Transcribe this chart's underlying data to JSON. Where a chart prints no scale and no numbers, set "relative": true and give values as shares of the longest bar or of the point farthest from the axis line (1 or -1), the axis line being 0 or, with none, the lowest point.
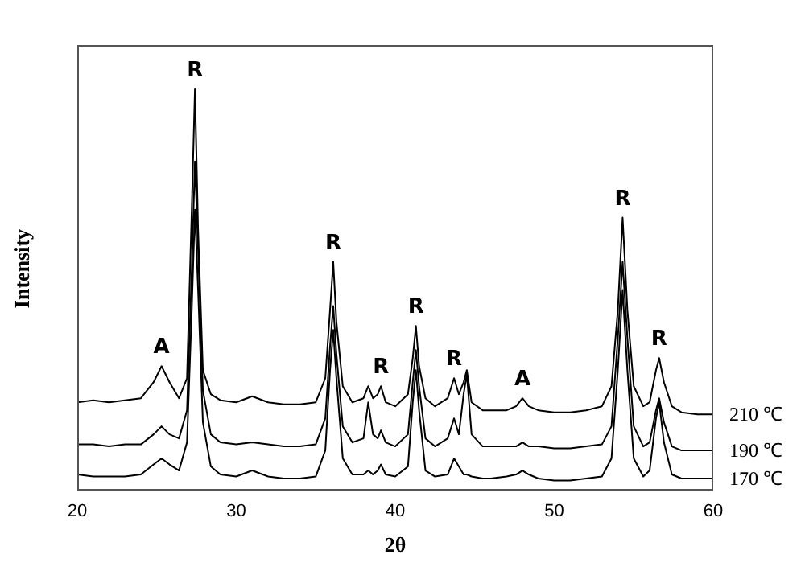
{
  "chart_data": {
    "type": "line",
    "xlabel": "2θ",
    "ylabel": "Intensity",
    "relative": true,
    "xlim": [
      20,
      60
    ],
    "xticks": [
      20,
      30,
      40,
      50,
      60
    ],
    "tick_labels": "x",
    "line_style": "solid",
    "x": [
      20,
      21,
      22,
      23,
      24,
      24.8,
      25.3,
      25.8,
      26.4,
      26.9,
      27.2,
      27.4,
      27.6,
      27.9,
      28.4,
      29,
      30,
      31,
      32,
      33,
      34,
      35,
      35.6,
      35.9,
      36.1,
      36.3,
      36.7,
      37.3,
      38,
      38.3,
      38.6,
      38.9,
      39.1,
      39.4,
      40,
      40.8,
      41.1,
      41.3,
      41.5,
      41.9,
      42.5,
      43.3,
      43.7,
      44.0,
      44.3,
      44.5,
      44.8,
      45.5,
      46,
      47,
      47.6,
      48,
      48.4,
      49,
      50,
      51,
      52,
      53,
      53.6,
      54.0,
      54.3,
      54.6,
      55.0,
      55.6,
      56.0,
      56.4,
      56.6,
      56.9,
      57.4,
      58,
      59,
      60
    ],
    "series": [
      {
        "name": "210 ℃",
        "color": "#000000",
        "values": [
          0.22,
          0.225,
          0.22,
          0.225,
          0.23,
          0.27,
          0.31,
          0.27,
          0.23,
          0.28,
          0.7,
          1.0,
          0.65,
          0.3,
          0.24,
          0.225,
          0.22,
          0.235,
          0.22,
          0.215,
          0.215,
          0.22,
          0.28,
          0.45,
          0.57,
          0.42,
          0.26,
          0.22,
          0.23,
          0.26,
          0.23,
          0.24,
          0.26,
          0.22,
          0.21,
          0.24,
          0.33,
          0.41,
          0.31,
          0.23,
          0.21,
          0.23,
          0.28,
          0.24,
          0.27,
          0.3,
          0.22,
          0.2,
          0.2,
          0.2,
          0.21,
          0.23,
          0.21,
          0.2,
          0.195,
          0.195,
          0.2,
          0.21,
          0.26,
          0.45,
          0.68,
          0.45,
          0.26,
          0.21,
          0.22,
          0.3,
          0.33,
          0.27,
          0.21,
          0.195,
          0.19,
          0.19
        ]
      },
      {
        "name": "190 ℃",
        "color": "#000000",
        "values": [
          0.115,
          0.115,
          0.11,
          0.115,
          0.115,
          0.14,
          0.16,
          0.14,
          0.13,
          0.2,
          0.55,
          0.82,
          0.6,
          0.25,
          0.14,
          0.12,
          0.115,
          0.12,
          0.115,
          0.11,
          0.11,
          0.115,
          0.18,
          0.36,
          0.46,
          0.34,
          0.16,
          0.12,
          0.13,
          0.22,
          0.14,
          0.13,
          0.15,
          0.12,
          0.11,
          0.14,
          0.27,
          0.35,
          0.26,
          0.13,
          0.11,
          0.13,
          0.18,
          0.14,
          0.24,
          0.29,
          0.14,
          0.11,
          0.11,
          0.11,
          0.11,
          0.12,
          0.11,
          0.11,
          0.105,
          0.105,
          0.11,
          0.115,
          0.16,
          0.38,
          0.57,
          0.38,
          0.16,
          0.11,
          0.12,
          0.2,
          0.23,
          0.17,
          0.11,
          0.1,
          0.1,
          0.1
        ]
      },
      {
        "name": "170 ℃",
        "color": "#000000",
        "values": [
          0.04,
          0.035,
          0.035,
          0.035,
          0.04,
          0.065,
          0.08,
          0.065,
          0.05,
          0.12,
          0.45,
          0.7,
          0.5,
          0.17,
          0.06,
          0.04,
          0.035,
          0.05,
          0.035,
          0.03,
          0.03,
          0.035,
          0.1,
          0.3,
          0.4,
          0.28,
          0.08,
          0.04,
          0.04,
          0.05,
          0.04,
          0.05,
          0.065,
          0.04,
          0.035,
          0.06,
          0.22,
          0.3,
          0.2,
          0.05,
          0.035,
          0.04,
          0.08,
          0.06,
          0.04,
          0.04,
          0.035,
          0.03,
          0.03,
          0.035,
          0.04,
          0.05,
          0.04,
          0.03,
          0.025,
          0.025,
          0.03,
          0.035,
          0.08,
          0.3,
          0.5,
          0.3,
          0.08,
          0.035,
          0.05,
          0.18,
          0.22,
          0.12,
          0.04,
          0.03,
          0.03,
          0.03
        ]
      }
    ],
    "annotations": [
      {
        "text": "A",
        "x": 25.3,
        "y": 0.31
      },
      {
        "text": "R",
        "x": 27.4,
        "y": 1.0
      },
      {
        "text": "R",
        "x": 36.1,
        "y": 0.57
      },
      {
        "text": "R",
        "x": 39.1,
        "y": 0.26
      },
      {
        "text": "R",
        "x": 41.3,
        "y": 0.41
      },
      {
        "text": "R",
        "x": 43.7,
        "y": 0.28
      },
      {
        "text": "A",
        "x": 48,
        "y": 0.23
      },
      {
        "text": "R",
        "x": 54.3,
        "y": 0.68
      },
      {
        "text": "R",
        "x": 56.6,
        "y": 0.33
      }
    ]
  }
}
